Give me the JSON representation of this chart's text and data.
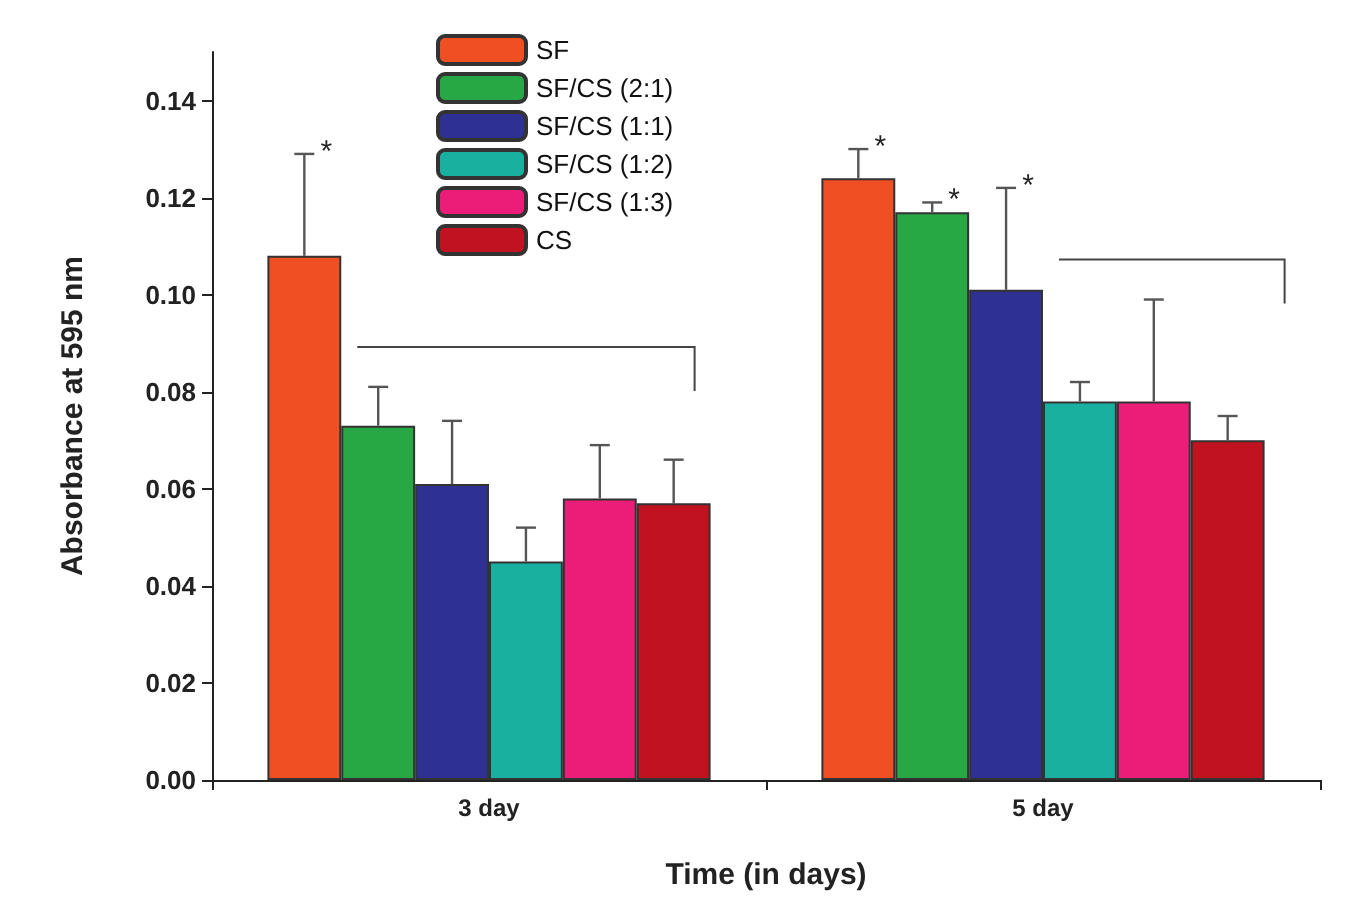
{
  "chart_data": {
    "type": "bar",
    "xlabel": "Time (in days)",
    "ylabel": "Absorbance at 595 nm",
    "categories": [
      "3 day",
      "5 day"
    ],
    "series": [
      {
        "name": "SF",
        "color": "#f04e23",
        "values": [
          0.108,
          0.124
        ],
        "errors": [
          [
            0.108,
            0.129
          ],
          [
            0.124,
            0.13
          ]
        ]
      },
      {
        "name": "SF/CS (2:1)",
        "color": "#27a844",
        "values": [
          0.073,
          0.117
        ],
        "errors": [
          [
            0.073,
            0.081
          ],
          [
            0.117,
            0.119
          ]
        ]
      },
      {
        "name": "SF/CS (1:1)",
        "color": "#2e3192",
        "values": [
          0.061,
          0.101
        ],
        "errors": [
          [
            0.061,
            0.074
          ],
          [
            0.101,
            0.122
          ]
        ]
      },
      {
        "name": "SF/CS (1:2)",
        "color": "#1ab0a0",
        "values": [
          0.045,
          0.078
        ],
        "errors": [
          [
            0.045,
            0.052
          ],
          [
            0.078,
            0.082
          ]
        ]
      },
      {
        "name": "SF/CS (1:3)",
        "color": "#ec1c79",
        "values": [
          0.058,
          0.078
        ],
        "errors": [
          [
            0.058,
            0.069
          ],
          [
            0.078,
            0.099
          ]
        ]
      },
      {
        "name": "CS",
        "color": "#c1121f",
        "values": [
          0.057,
          0.07
        ],
        "errors": [
          [
            0.057,
            0.066
          ],
          [
            0.07,
            0.075
          ]
        ]
      }
    ],
    "ylim": [
      0,
      0.15
    ],
    "yticks": [
      {
        "value": 0,
        "label": "0.00"
      },
      {
        "value": 0.02,
        "label": "0.02"
      },
      {
        "value": 0.04,
        "label": "0.04"
      },
      {
        "value": 0.06,
        "label": "0.06"
      },
      {
        "value": 0.08,
        "label": "0.08"
      },
      {
        "value": 0.1,
        "label": "0.10"
      },
      {
        "value": 0.12,
        "label": "0.12"
      },
      {
        "value": 0.14,
        "label": "0.14"
      }
    ],
    "annotations": [
      "*",
      "*",
      "*",
      "*"
    ],
    "legend": "top",
    "grid": false
  }
}
